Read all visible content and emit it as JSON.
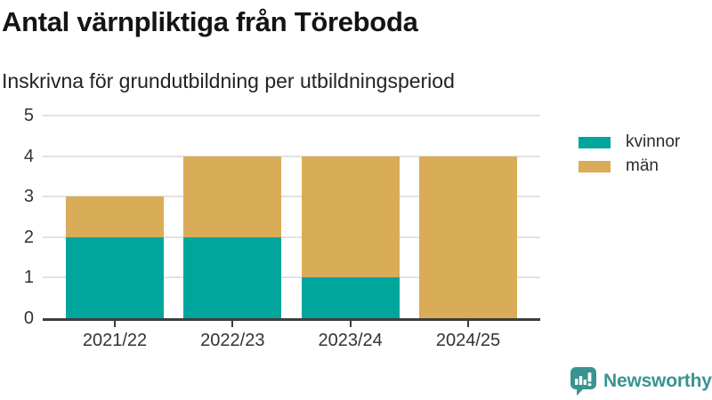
{
  "header": {
    "title": "Antal värnpliktiga från Töreboda",
    "subtitle": "Inskrivna för grundutbildning per utbildningsperiod"
  },
  "chart_data": {
    "type": "bar",
    "stacked": true,
    "title": "Antal värnpliktiga från Töreboda",
    "subtitle": "Inskrivna för grundutbildning per utbildningsperiod",
    "categories": [
      "2021/22",
      "2022/23",
      "2023/24",
      "2024/25"
    ],
    "series": [
      {
        "name": "kvinnor",
        "color": "#00a59c",
        "values": [
          2,
          2,
          1,
          0
        ]
      },
      {
        "name": "män",
        "color": "#d9ac57",
        "values": [
          1,
          2,
          3,
          4
        ]
      }
    ],
    "totals": [
      3,
      4,
      4,
      4
    ],
    "xlabel": "",
    "ylabel": "",
    "ylim": [
      0,
      5
    ],
    "yticks": [
      0,
      1,
      2,
      3,
      4,
      5
    ],
    "grid": true,
    "legend_position": "right"
  },
  "colors": {
    "grid": "#e2e2e2",
    "axis": "#3d3d3d",
    "tick_label": "#333333",
    "brand_teal": "#38948e"
  },
  "footer": {
    "brand": "Newsworthy",
    "logo_icon": "bar-chart-speech-bubble-icon"
  }
}
